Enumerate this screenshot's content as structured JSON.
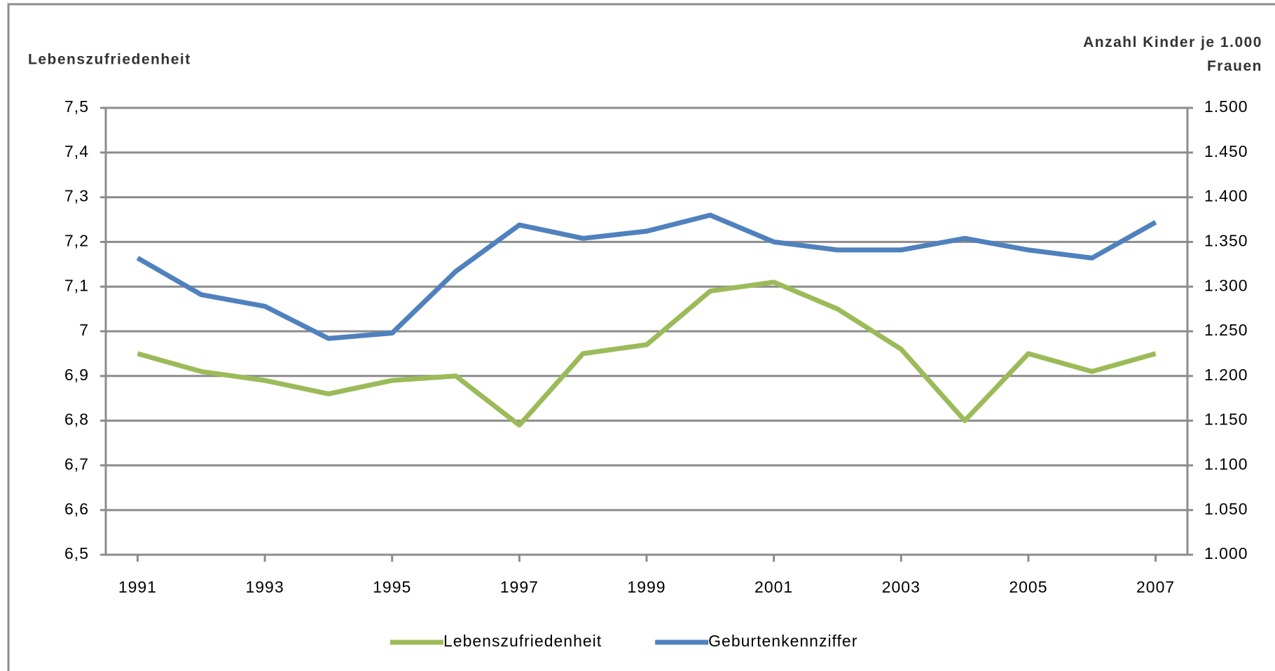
{
  "chart_data": {
    "type": "line",
    "ylabel": "Lebenszufriedenheit",
    "y2label": "Anzahl Kinder je 1.000 Frauen",
    "x": [
      1991,
      1992,
      1993,
      1994,
      1995,
      1996,
      1997,
      1998,
      1999,
      2000,
      2001,
      2002,
      2003,
      2004,
      2005,
      2006,
      2007
    ],
    "xlim": [
      1990.5,
      2007.5
    ],
    "xticks": [
      1991,
      1993,
      1995,
      1997,
      1999,
      2001,
      2003,
      2005,
      2007
    ],
    "ylim": [
      6.5,
      7.5
    ],
    "yticks": [
      {
        "value": 6.5,
        "label": "6,5"
      },
      {
        "value": 6.6,
        "label": "6,6"
      },
      {
        "value": 6.7,
        "label": "6,7"
      },
      {
        "value": 6.8,
        "label": "6,8"
      },
      {
        "value": 6.9,
        "label": "6,9"
      },
      7,
      {
        "value": 7.1,
        "label": "7,1"
      },
      {
        "value": 7.2,
        "label": "7,2"
      },
      {
        "value": 7.3,
        "label": "7,3"
      },
      {
        "value": 7.4,
        "label": "7,4"
      },
      {
        "value": 7.5,
        "label": "7,5"
      }
    ],
    "y2lim": [
      1000,
      1500
    ],
    "y2ticks": [
      {
        "value": 1000,
        "label": "1.000"
      },
      {
        "value": 1050,
        "label": "1.050"
      },
      {
        "value": 1100,
        "label": "1.100"
      },
      {
        "value": 1150,
        "label": "1.150"
      },
      {
        "value": 1200,
        "label": "1.200"
      },
      {
        "value": 1250,
        "label": "1.250"
      },
      {
        "value": 1300,
        "label": "1.300"
      },
      {
        "value": 1350,
        "label": "1.350"
      },
      {
        "value": 1400,
        "label": "1.400"
      },
      {
        "value": 1450,
        "label": "1.450"
      },
      {
        "value": 1500,
        "label": "1.500"
      }
    ],
    "grid": true,
    "legend": "bottom",
    "series": [
      {
        "name": "Lebenszufriedenheit",
        "color": "#9bbb59",
        "values": [
          6.95,
          6.91,
          6.89,
          6.86,
          6.89,
          6.9,
          6.79,
          6.95,
          6.97,
          7.09,
          7.11,
          7.05,
          6.96,
          6.8,
          6.95,
          6.91,
          6.95
        ]
      },
      {
        "name": "Geburtenkennziffer",
        "color": "#4f81bd",
        "axis": "y2",
        "values": [
          1332,
          1291,
          1278,
          1242,
          1248,
          1317,
          1369,
          1354,
          1362,
          1380,
          1350,
          1341,
          1341,
          1354,
          1341,
          1332,
          1372
        ]
      }
    ]
  }
}
